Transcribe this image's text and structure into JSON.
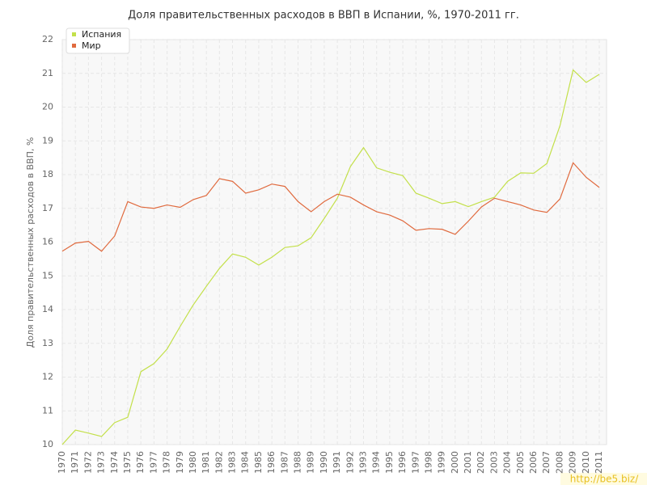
{
  "chart_data": {
    "type": "line",
    "title": "Доля правительственных расходов в ВВП в Испании, %, 1970-2011 гг.",
    "y_label": "Доля правительственных расходов в ВВП, %",
    "watermark": "http://be5.biz/",
    "categories": [
      "1970",
      "1971",
      "1972",
      "1973",
      "1974",
      "1975",
      "1976",
      "1977",
      "1978",
      "1979",
      "1980",
      "1981",
      "1982",
      "1983",
      "1984",
      "1985",
      "1986",
      "1987",
      "1988",
      "1989",
      "1990",
      "1991",
      "1992",
      "1993",
      "1994",
      "1995",
      "1996",
      "1997",
      "1998",
      "1999",
      "2000",
      "2001",
      "2002",
      "2003",
      "2004",
      "2005",
      "2006",
      "2007",
      "2008",
      "2009",
      "2010",
      "2011"
    ],
    "series": [
      {
        "name": "Испания",
        "color": "#c3e04a",
        "values": [
          10.0,
          10.43,
          10.34,
          10.24,
          10.65,
          10.81,
          12.16,
          12.4,
          12.83,
          13.5,
          14.14,
          14.69,
          15.22,
          15.65,
          15.55,
          15.32,
          15.55,
          15.84,
          15.89,
          16.13,
          16.7,
          17.3,
          18.24,
          18.8,
          18.2,
          18.07,
          17.97,
          17.45,
          17.3,
          17.14,
          17.2,
          17.05,
          17.2,
          17.33,
          17.8,
          18.05,
          18.04,
          18.33,
          19.45,
          21.1,
          20.73,
          20.97
        ]
      },
      {
        "name": "Мир",
        "color": "#e06a3e",
        "values": [
          15.73,
          15.97,
          16.02,
          15.73,
          16.18,
          17.2,
          17.04,
          17.0,
          17.1,
          17.03,
          17.26,
          17.38,
          17.88,
          17.8,
          17.45,
          17.55,
          17.72,
          17.65,
          17.2,
          16.9,
          17.2,
          17.42,
          17.33,
          17.1,
          16.9,
          16.8,
          16.63,
          16.35,
          16.4,
          16.38,
          16.23,
          16.62,
          17.04,
          17.3,
          17.2,
          17.1,
          16.95,
          16.88,
          17.28,
          18.35,
          17.92,
          17.62
        ]
      }
    ],
    "ylim": [
      10,
      22
    ],
    "yticks": [
      10,
      11,
      12,
      13,
      14,
      15,
      16,
      17,
      18,
      19,
      20,
      21,
      22
    ],
    "grid": true
  }
}
